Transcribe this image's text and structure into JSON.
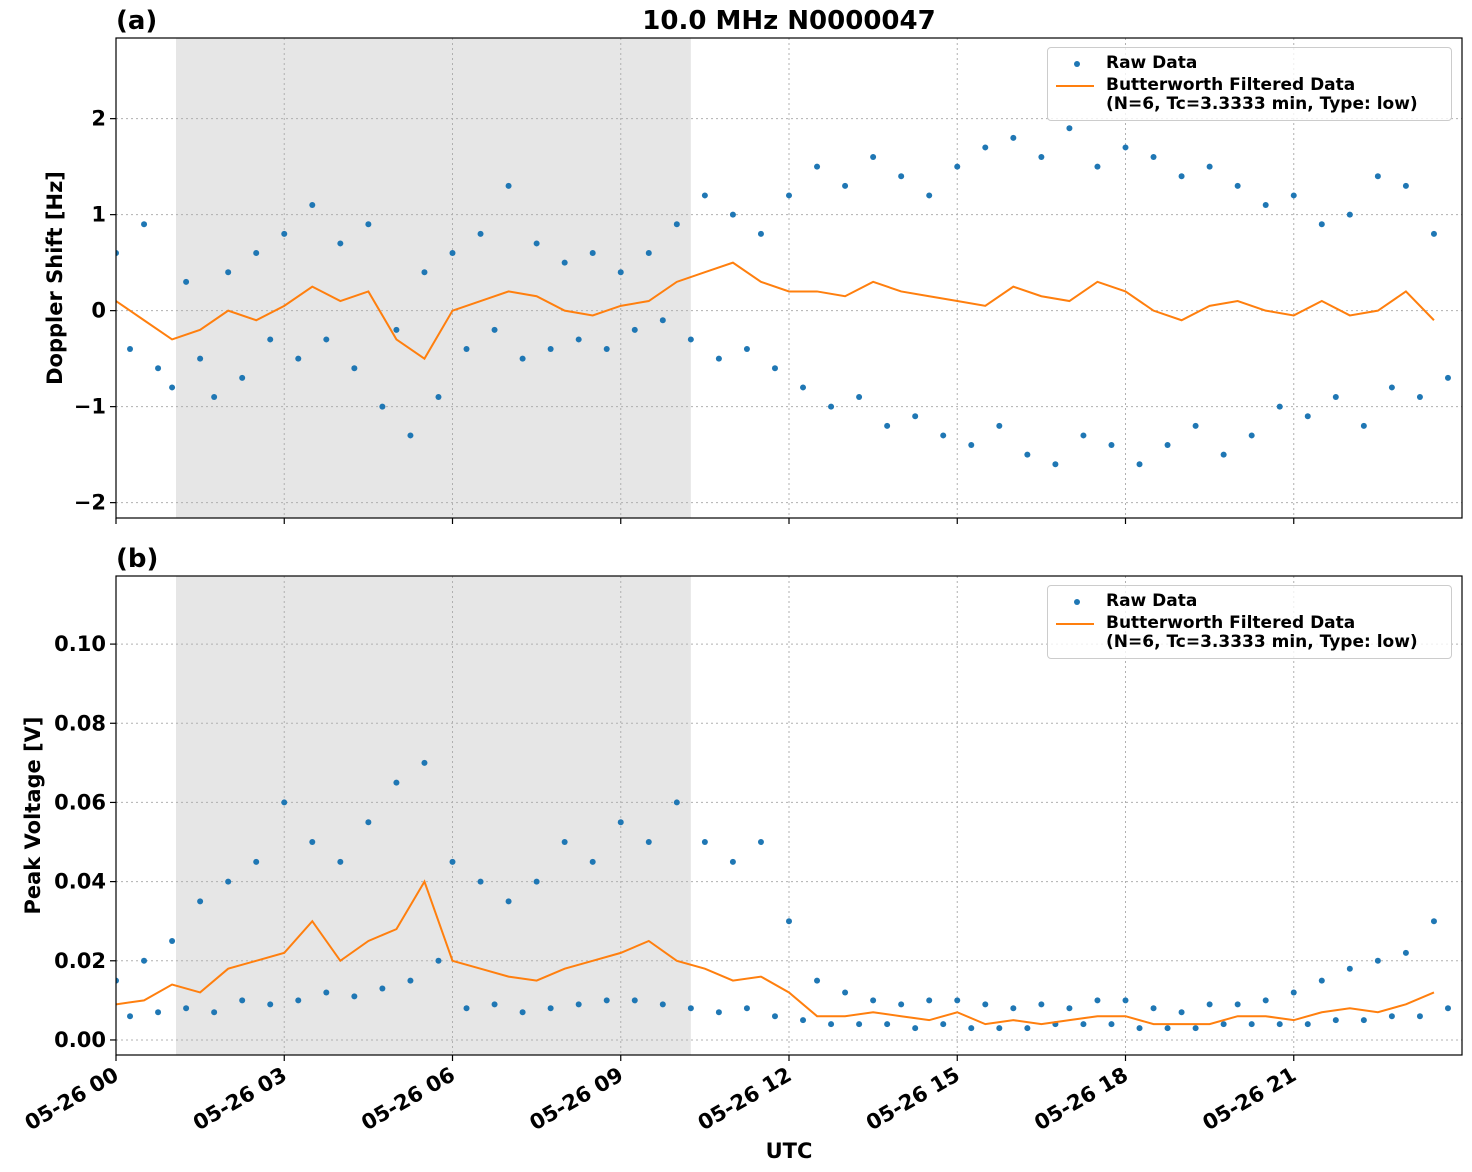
{
  "chart_data": [
    {
      "type": "scatter",
      "title": "10.0 MHz N0000047",
      "panel_label": "(a)",
      "y_label": "Doppler Shift [Hz]",
      "xlim": [
        0,
        24
      ],
      "xticks": [
        0,
        3,
        6,
        9,
        12,
        15,
        18,
        21
      ],
      "ylim": [
        -2.16,
        2.84
      ],
      "yticks": [
        {
          "value": -2,
          "label": "−2"
        },
        {
          "value": -1,
          "label": "−1"
        },
        0,
        1,
        2
      ],
      "grid": true,
      "shade": [
        1.07,
        10.25
      ],
      "legend": "upper right",
      "series": [
        {
          "name": "Raw Data",
          "color": "#1f77b4",
          "kind": "scatter",
          "x": [
            0,
            0.25,
            0.5,
            0.75,
            1,
            1.25,
            1.5,
            1.75,
            2,
            2.25,
            2.5,
            2.75,
            3,
            3.25,
            3.5,
            3.75,
            4,
            4.25,
            4.5,
            4.75,
            5,
            5.25,
            5.5,
            5.75,
            6,
            6.25,
            6.5,
            6.75,
            7,
            7.25,
            7.5,
            7.75,
            8,
            8.25,
            8.5,
            8.75,
            9,
            9.25,
            9.5,
            9.75,
            10,
            10.25,
            10.5,
            10.75,
            11,
            11.25,
            11.5,
            11.75,
            12,
            12.25,
            12.5,
            12.75,
            13,
            13.25,
            13.5,
            13.75,
            14,
            14.25,
            14.5,
            14.75,
            15,
            15.25,
            15.5,
            15.75,
            16,
            16.25,
            16.5,
            16.75,
            17,
            17.25,
            17.5,
            17.75,
            18,
            18.25,
            18.5,
            18.75,
            19,
            19.25,
            19.5,
            19.75,
            20,
            20.25,
            20.5,
            20.75,
            21,
            21.25,
            21.5,
            21.75,
            22,
            22.25,
            22.5,
            22.75,
            23,
            23.25,
            23.5,
            23.75
          ],
          "values": [
            0.6,
            -0.4,
            0.9,
            -0.6,
            -0.8,
            0.3,
            -0.5,
            -0.9,
            0.4,
            -0.7,
            0.6,
            -0.3,
            0.8,
            -0.5,
            1.1,
            -0.3,
            0.7,
            -0.6,
            0.9,
            -1.0,
            -0.2,
            -1.3,
            0.4,
            -0.9,
            0.6,
            -0.4,
            0.8,
            -0.2,
            1.3,
            -0.5,
            0.7,
            -0.4,
            0.5,
            -0.3,
            0.6,
            -0.4,
            0.4,
            -0.2,
            0.6,
            -0.1,
            0.9,
            -0.3,
            1.2,
            -0.5,
            1.0,
            -0.4,
            0.8,
            -0.6,
            1.2,
            -0.8,
            1.5,
            -1.0,
            1.3,
            -0.9,
            1.6,
            -1.2,
            1.4,
            -1.1,
            1.2,
            -1.3,
            1.5,
            -1.4,
            1.7,
            -1.2,
            1.8,
            -1.5,
            1.6,
            -1.6,
            1.9,
            -1.3,
            1.5,
            -1.4,
            1.7,
            -1.6,
            1.6,
            -1.4,
            1.4,
            -1.2,
            1.5,
            -1.5,
            1.3,
            -1.3,
            1.1,
            -1.0,
            1.2,
            -1.1,
            0.9,
            -0.9,
            1.0,
            -1.2,
            1.4,
            -0.8,
            1.3,
            -0.9,
            0.8,
            -0.7
          ]
        },
        {
          "name": "Butterworth Filtered Data\n(N=6, Tc=3.3333 min, Type: low)",
          "color": "#ff7f0e",
          "kind": "line",
          "x": [
            0,
            0.5,
            1,
            1.5,
            2,
            2.5,
            3,
            3.5,
            4,
            4.5,
            5,
            5.5,
            6,
            6.5,
            7,
            7.5,
            8,
            8.5,
            9,
            9.5,
            10,
            10.5,
            11,
            11.5,
            12,
            12.5,
            13,
            13.5,
            14,
            14.5,
            15,
            15.5,
            16,
            16.5,
            17,
            17.5,
            18,
            18.5,
            19,
            19.5,
            20,
            20.5,
            21,
            21.5,
            22,
            22.5,
            23,
            23.5
          ],
          "values": [
            0.1,
            -0.1,
            -0.3,
            -0.2,
            0.0,
            -0.1,
            0.05,
            0.25,
            0.1,
            0.2,
            -0.3,
            -0.5,
            0.0,
            0.1,
            0.2,
            0.15,
            0.0,
            -0.05,
            0.05,
            0.1,
            0.3,
            0.4,
            0.5,
            0.3,
            0.2,
            0.2,
            0.15,
            0.3,
            0.2,
            0.15,
            0.1,
            0.05,
            0.25,
            0.15,
            0.1,
            0.3,
            0.2,
            0.0,
            -0.1,
            0.05,
            0.1,
            0.0,
            -0.05,
            0.1,
            -0.05,
            0.0,
            0.2,
            -0.1
          ]
        }
      ]
    },
    {
      "type": "scatter",
      "panel_label": "(b)",
      "y_label": "Peak Voltage [V]",
      "x_label": "UTC",
      "xlim": [
        0,
        24
      ],
      "xticks": [
        {
          "value": 0,
          "label": "05-26 00"
        },
        {
          "value": 3,
          "label": "05-26 03"
        },
        {
          "value": 6,
          "label": "05-26 06"
        },
        {
          "value": 9,
          "label": "05-26 09"
        },
        {
          "value": 12,
          "label": "05-26 12"
        },
        {
          "value": 15,
          "label": "05-26 15"
        },
        {
          "value": 18,
          "label": "05-26 18"
        },
        {
          "value": 21,
          "label": "05-26 21"
        }
      ],
      "ylim": [
        -0.0038,
        0.1172
      ],
      "yticks": [
        {
          "value": 0,
          "label": "0.00"
        },
        {
          "value": 0.02,
          "label": "0.02"
        },
        {
          "value": 0.04,
          "label": "0.04"
        },
        {
          "value": 0.06,
          "label": "0.06"
        },
        {
          "value": 0.08,
          "label": "0.08"
        },
        {
          "value": 0.1,
          "label": "0.10"
        }
      ],
      "grid": true,
      "shade": [
        1.07,
        10.25
      ],
      "legend": "upper right",
      "series": [
        {
          "name": "Raw Data",
          "color": "#1f77b4",
          "kind": "scatter",
          "x": [
            0,
            0.25,
            0.5,
            0.75,
            1,
            1.25,
            1.5,
            1.75,
            2,
            2.25,
            2.5,
            2.75,
            3,
            3.25,
            3.5,
            3.75,
            4,
            4.25,
            4.5,
            4.75,
            5,
            5.25,
            5.5,
            5.75,
            6,
            6.25,
            6.5,
            6.75,
            7,
            7.25,
            7.5,
            7.75,
            8,
            8.25,
            8.5,
            8.75,
            9,
            9.25,
            9.5,
            9.75,
            10,
            10.25,
            10.5,
            10.75,
            11,
            11.25,
            11.5,
            11.75,
            12,
            12.25,
            12.5,
            12.75,
            13,
            13.25,
            13.5,
            13.75,
            14,
            14.25,
            14.5,
            14.75,
            15,
            15.25,
            15.5,
            15.75,
            16,
            16.25,
            16.5,
            16.75,
            17,
            17.25,
            17.5,
            17.75,
            18,
            18.25,
            18.5,
            18.75,
            19,
            19.25,
            19.5,
            19.75,
            20,
            20.25,
            20.5,
            20.75,
            21,
            21.25,
            21.5,
            21.75,
            22,
            22.25,
            22.5,
            22.75,
            23,
            23.25,
            23.5,
            23.75
          ],
          "values": [
            0.015,
            0.006,
            0.02,
            0.007,
            0.025,
            0.008,
            0.035,
            0.007,
            0.04,
            0.01,
            0.045,
            0.009,
            0.06,
            0.01,
            0.05,
            0.012,
            0.045,
            0.011,
            0.055,
            0.013,
            0.065,
            0.015,
            0.07,
            0.02,
            0.045,
            0.008,
            0.04,
            0.009,
            0.035,
            0.007,
            0.04,
            0.008,
            0.05,
            0.009,
            0.045,
            0.01,
            0.055,
            0.01,
            0.05,
            0.009,
            0.06,
            0.008,
            0.05,
            0.007,
            0.045,
            0.008,
            0.05,
            0.006,
            0.03,
            0.005,
            0.015,
            0.004,
            0.012,
            0.004,
            0.01,
            0.004,
            0.009,
            0.003,
            0.01,
            0.004,
            0.01,
            0.003,
            0.009,
            0.003,
            0.008,
            0.003,
            0.009,
            0.004,
            0.008,
            0.004,
            0.01,
            0.004,
            0.01,
            0.003,
            0.008,
            0.003,
            0.007,
            0.003,
            0.009,
            0.004,
            0.009,
            0.004,
            0.01,
            0.004,
            0.012,
            0.004,
            0.015,
            0.005,
            0.018,
            0.005,
            0.02,
            0.006,
            0.022,
            0.006,
            0.03,
            0.008
          ]
        },
        {
          "name": "Butterworth Filtered Data\n(N=6, Tc=3.3333 min, Type: low)",
          "color": "#ff7f0e",
          "kind": "line",
          "x": [
            0,
            0.5,
            1,
            1.5,
            2,
            2.5,
            3,
            3.5,
            4,
            4.5,
            5,
            5.5,
            6,
            6.5,
            7,
            7.5,
            8,
            8.5,
            9,
            9.5,
            10,
            10.5,
            11,
            11.5,
            12,
            12.5,
            13,
            13.5,
            14,
            14.5,
            15,
            15.5,
            16,
            16.5,
            17,
            17.5,
            18,
            18.5,
            19,
            19.5,
            20,
            20.5,
            21,
            21.5,
            22,
            22.5,
            23,
            23.5
          ],
          "values": [
            0.009,
            0.01,
            0.014,
            0.012,
            0.018,
            0.02,
            0.022,
            0.03,
            0.02,
            0.025,
            0.028,
            0.04,
            0.02,
            0.018,
            0.016,
            0.015,
            0.018,
            0.02,
            0.022,
            0.025,
            0.02,
            0.018,
            0.015,
            0.016,
            0.012,
            0.006,
            0.006,
            0.007,
            0.006,
            0.005,
            0.007,
            0.004,
            0.005,
            0.004,
            0.005,
            0.006,
            0.006,
            0.004,
            0.004,
            0.004,
            0.006,
            0.006,
            0.005,
            0.007,
            0.008,
            0.007,
            0.009,
            0.012
          ]
        }
      ]
    }
  ]
}
